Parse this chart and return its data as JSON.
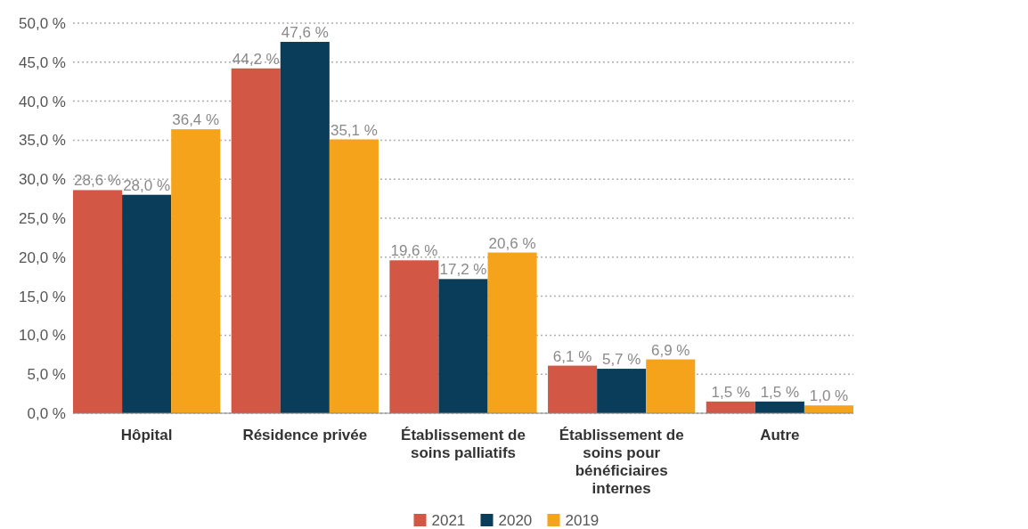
{
  "chart_data": {
    "type": "bar",
    "categories": [
      "Hôpital",
      "Résidence privée",
      "Établissement de soins palliatifs",
      "Établissement de soins pour bénéficiaires internes",
      "Autre"
    ],
    "series": [
      {
        "name": "2021",
        "color": "#d35745",
        "values": [
          28.6,
          44.2,
          19.6,
          6.1,
          1.5
        ],
        "value_labels": [
          "28,6 %",
          "44,2 %",
          "19,6 %",
          "6,1 %",
          "1,5 %"
        ]
      },
      {
        "name": "2020",
        "color": "#0a3d5a",
        "values": [
          28.0,
          47.6,
          17.2,
          5.7,
          1.5
        ],
        "value_labels": [
          "28,0 %",
          "47,6 %",
          "17,2 %",
          "5,7 %",
          "1,5 %"
        ]
      },
      {
        "name": "2019",
        "color": "#f5a31a",
        "values": [
          36.4,
          35.1,
          20.6,
          6.9,
          1.0
        ],
        "value_labels": [
          "36,4 %",
          "35,1 %",
          "20,6 %",
          "6,9 %",
          "1,0 %"
        ]
      }
    ],
    "ylim": [
      0,
      50
    ],
    "yticks": [
      {
        "value": 0,
        "label": "0,0 %"
      },
      {
        "value": 5,
        "label": "5,0 %"
      },
      {
        "value": 10,
        "label": "10,0 %"
      },
      {
        "value": 15,
        "label": "15,0 %"
      },
      {
        "value": 20,
        "label": "20,0 %"
      },
      {
        "value": 25,
        "label": "25,0 %"
      },
      {
        "value": 30,
        "label": "30,0 %"
      },
      {
        "value": 35,
        "label": "35,0 %"
      },
      {
        "value": 40,
        "label": "40,0 %"
      },
      {
        "value": 45,
        "label": "45,0 %"
      },
      {
        "value": 50,
        "label": "50,0 %"
      }
    ],
    "grid": "y",
    "legend": "bottom"
  }
}
